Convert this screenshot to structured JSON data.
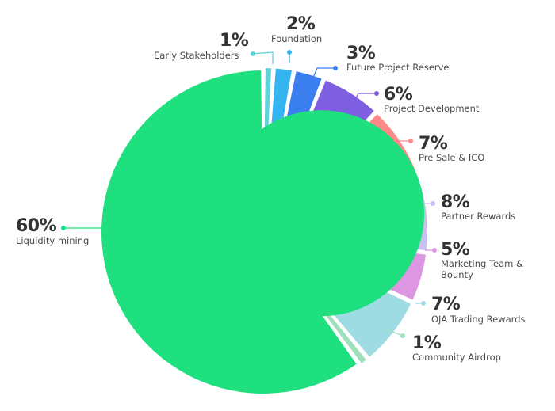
{
  "chart_data": {
    "type": "pie",
    "variant": "donut",
    "slices": [
      {
        "value": 1,
        "pct_text": "1%",
        "label": "Early Stakeholders",
        "color": "#5fd3d8"
      },
      {
        "value": 2,
        "pct_text": "2%",
        "label": "Foundation",
        "color": "#35b4f2"
      },
      {
        "value": 3,
        "pct_text": "3%",
        "label": "Future Project Reserve",
        "color": "#3a7ef0"
      },
      {
        "value": 6,
        "pct_text": "6%",
        "label": "Project Development",
        "color": "#7e5fe2"
      },
      {
        "value": 7,
        "pct_text": "7%",
        "label": "Pre Sale & ICO",
        "color": "#ff8a8a"
      },
      {
        "value": 8,
        "pct_text": "8%",
        "label": "Partner Rewards",
        "color": "#c9c0ef"
      },
      {
        "value": 5,
        "pct_text": "5%",
        "label": "Marketing Team & Bounty",
        "color": "#dc96e2"
      },
      {
        "value": 7,
        "pct_text": "7%",
        "label": "OJA Trading Rewards",
        "color": "#9fdbe3"
      },
      {
        "value": 1,
        "pct_text": "1%",
        "label": "Community Airdrop",
        "color": "#9fe0bd"
      },
      {
        "value": 60,
        "pct_text": "60%",
        "label": "Liquidity mining",
        "color": "#1ee07f"
      }
    ]
  }
}
